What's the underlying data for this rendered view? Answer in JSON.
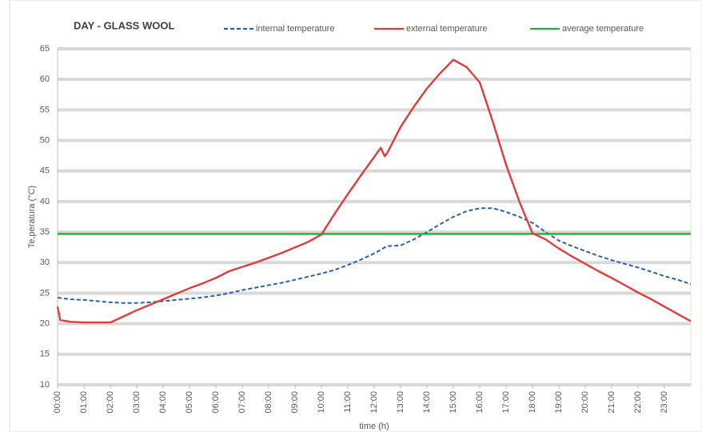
{
  "chart_data": {
    "type": "line",
    "title": "DAY - GLASS WOOL",
    "xlabel": "time (h)",
    "ylabel": "Te,peratura (°C)",
    "x": [
      0,
      0.1,
      0.5,
      1,
      1.5,
      2,
      2.5,
      3,
      3.5,
      4,
      4.5,
      5,
      5.5,
      6,
      6.5,
      7,
      7.5,
      8,
      8.5,
      9,
      9.5,
      10,
      10.5,
      11,
      11.5,
      12,
      12.25,
      12.4,
      12.5,
      13,
      13.5,
      14,
      14.5,
      15,
      15.5,
      16,
      16.5,
      17,
      17.5,
      18,
      18.5,
      19,
      19.5,
      20,
      20.5,
      21,
      21.5,
      22,
      22.5,
      23,
      23.5,
      24
    ],
    "series": [
      {
        "name": "internal temperature",
        "color": "#2e5fa3",
        "dashed": true,
        "values": [
          24.3,
          24.2,
          24,
          23.9,
          23.7,
          23.5,
          23.4,
          23.4,
          23.5,
          23.7,
          23.9,
          24.1,
          24.3,
          24.6,
          25,
          25.5,
          25.9,
          26.3,
          26.7,
          27.2,
          27.7,
          28.2,
          28.8,
          29.6,
          30.5,
          31.5,
          32.1,
          32.5,
          32.7,
          32.8,
          33.8,
          35,
          36.3,
          37.5,
          38.4,
          38.9,
          38.9,
          38.3,
          37.5,
          36.5,
          35,
          33.6,
          32.7,
          31.9,
          31.1,
          30.4,
          29.8,
          29.2,
          28.5,
          27.8,
          27.2,
          26.5
        ]
      },
      {
        "name": "external temperature",
        "color": "#e03c3c",
        "dashed": false,
        "values": [
          22.8,
          20.6,
          20.3,
          20.2,
          20.2,
          20.2,
          21.2,
          22.2,
          23.1,
          24,
          24.9,
          25.8,
          26.6,
          27.5,
          28.6,
          29.3,
          30,
          30.8,
          31.6,
          32.5,
          33.4,
          34.6,
          38,
          41.2,
          44.3,
          47.3,
          48.8,
          47.4,
          48,
          52.2,
          55.5,
          58.5,
          61,
          63.2,
          62,
          59.5,
          53,
          46,
          40,
          34.8,
          33.8,
          32.3,
          31,
          29.8,
          28.6,
          27.5,
          26.3,
          25.1,
          24,
          22.8,
          21.6,
          20.4
        ]
      },
      {
        "name": "average temperature",
        "color": "#1fae3a",
        "dashed": false,
        "values": [
          34.7,
          34.7,
          34.7,
          34.7,
          34.7,
          34.7,
          34.7,
          34.7,
          34.7,
          34.7,
          34.7,
          34.7,
          34.7,
          34.7,
          34.7,
          34.7,
          34.7,
          34.7,
          34.7,
          34.7,
          34.7,
          34.7,
          34.7,
          34.7,
          34.7,
          34.7,
          34.7,
          34.7,
          34.7,
          34.7,
          34.7,
          34.7,
          34.7,
          34.7,
          34.7,
          34.7,
          34.7,
          34.7,
          34.7,
          34.7,
          34.7,
          34.7,
          34.7,
          34.7,
          34.7,
          34.7,
          34.7,
          34.7,
          34.7,
          34.7,
          34.7,
          34.7
        ]
      }
    ],
    "xlim": [
      0,
      24
    ],
    "xticks": [
      {
        "value": 0,
        "label": "00:00"
      },
      {
        "value": 1,
        "label": "01:00"
      },
      {
        "value": 2,
        "label": "02:00"
      },
      {
        "value": 3,
        "label": "03:00"
      },
      {
        "value": 4,
        "label": "04:00"
      },
      {
        "value": 5,
        "label": "05:00"
      },
      {
        "value": 6,
        "label": "06:00"
      },
      {
        "value": 7,
        "label": "07:00"
      },
      {
        "value": 8,
        "label": "08:00"
      },
      {
        "value": 9,
        "label": "09:00"
      },
      {
        "value": 10,
        "label": "10:00"
      },
      {
        "value": 11,
        "label": "11:00"
      },
      {
        "value": 12,
        "label": "12:00"
      },
      {
        "value": 13,
        "label": "13:00"
      },
      {
        "value": 14,
        "label": "14:00"
      },
      {
        "value": 15,
        "label": "15:00"
      },
      {
        "value": 16,
        "label": "16:00"
      },
      {
        "value": 17,
        "label": "17:00"
      },
      {
        "value": 18,
        "label": "18:00"
      },
      {
        "value": 19,
        "label": "19:00"
      },
      {
        "value": 20,
        "label": "20:00"
      },
      {
        "value": 21,
        "label": "21:00"
      },
      {
        "value": 22,
        "label": "22:00"
      },
      {
        "value": 23,
        "label": "23:00"
      }
    ],
    "ylim": [
      10,
      65
    ],
    "yticks": [
      10,
      15,
      20,
      25,
      30,
      35,
      40,
      45,
      50,
      55,
      60,
      65
    ],
    "grid": true,
    "legend": "top"
  }
}
